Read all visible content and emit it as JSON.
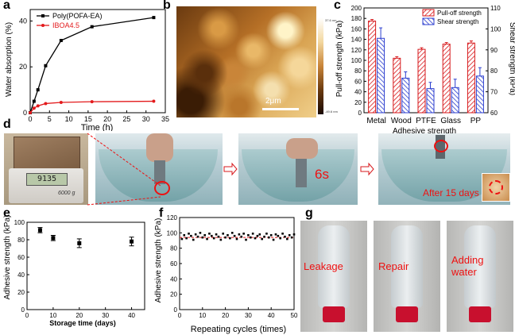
{
  "panels": {
    "a": "a",
    "b": "b",
    "c": "c",
    "d": "d",
    "e": "e",
    "f": "f",
    "g": "g"
  },
  "overlays": {
    "b_scale_bar": "2μm",
    "b_colorbar_top": "37.6 nm",
    "b_colorbar_bottom": "-49.6 nm",
    "d_time_label": "6s",
    "d_after_label": "After 15 days",
    "d_scale_reading": "9135",
    "d_scale_brand": "6000 g",
    "g_labels": [
      "Leakage",
      "Repair",
      "Adding water"
    ]
  },
  "colors": {
    "black_series": "#000000",
    "red_series": "#e31a1c",
    "pull_off": "#d7191c",
    "shear": "#2b3ecf",
    "photo_red": "#ee1111"
  },
  "chart_data": [
    {
      "id": "a",
      "type": "line",
      "xlabel": "Time (h)",
      "ylabel": "Water absorption (%)",
      "xlim": [
        0,
        35
      ],
      "ylim": [
        0,
        45
      ],
      "xticks": [
        0,
        5,
        10,
        15,
        20,
        25,
        30,
        35
      ],
      "yticks": [
        0,
        20,
        40
      ],
      "legend": "top-left",
      "series": [
        {
          "name": "Poly(POFA-EA)",
          "color": "#000000",
          "x": [
            0,
            1,
            2,
            4,
            8,
            16,
            32
          ],
          "y": [
            0,
            5,
            10,
            20.5,
            31.5,
            37.5,
            41.5
          ]
        },
        {
          "name": "IBOA4.5",
          "color": "#e31a1c",
          "x": [
            0,
            1,
            2,
            4,
            8,
            16,
            32
          ],
          "y": [
            0,
            2,
            3,
            4,
            4.5,
            4.8,
            5
          ]
        }
      ]
    },
    {
      "id": "c",
      "type": "bar",
      "xlabel": "Adhesive strength",
      "ylabel": "Pull-off strength (kPa)",
      "ylabel_right": "Shear strength (kPa)",
      "categories": [
        "Metal",
        "Wood",
        "PTFE",
        "Glass",
        "PP"
      ],
      "ylim": [
        0,
        200
      ],
      "yticks": [
        0,
        20,
        40,
        60,
        80,
        100,
        120,
        140,
        160,
        180,
        200
      ],
      "ylim_right": [
        60,
        110
      ],
      "yticks_right": [
        60,
        70,
        80,
        90,
        100,
        110
      ],
      "legend": "top-right",
      "series": [
        {
          "name": "Pull-off strength",
          "axis": "left",
          "values": [
            175,
            104,
            121,
            131,
            133
          ],
          "errors": [
            3,
            3,
            3,
            3,
            4
          ]
        },
        {
          "name": "Shear strength",
          "axis": "right",
          "values": [
            95.5,
            76.5,
            71.5,
            72,
            77.5
          ],
          "errors": [
            5,
            3,
            3,
            4,
            4
          ]
        }
      ]
    },
    {
      "id": "e",
      "type": "scatter",
      "xlabel": "Storage time (days)",
      "ylabel": "Adhesive strength (kPa)",
      "xlim": [
        0,
        45
      ],
      "ylim": [
        0,
        100
      ],
      "xticks": [
        0,
        10,
        20,
        30,
        40
      ],
      "yticks": [
        0,
        20,
        40,
        60,
        80,
        100
      ],
      "x": [
        5,
        10,
        20,
        40
      ],
      "y": [
        91,
        82,
        76,
        78
      ],
      "errors": [
        3,
        3,
        5,
        5
      ]
    },
    {
      "id": "f",
      "type": "scatter",
      "xlabel": "Repeating cycles (times)",
      "ylabel": "Adhesive strength (kPa)",
      "xlim": [
        0,
        50
      ],
      "ylim": [
        0,
        120
      ],
      "xticks": [
        0,
        10,
        20,
        30,
        40,
        50
      ],
      "yticks": [
        0,
        20,
        40,
        60,
        80,
        100,
        120
      ],
      "reference_line": 94,
      "x": [
        1,
        2,
        3,
        4,
        5,
        6,
        7,
        8,
        9,
        10,
        11,
        12,
        13,
        14,
        15,
        16,
        17,
        18,
        19,
        20,
        21,
        22,
        23,
        24,
        25,
        26,
        27,
        28,
        29,
        30,
        31,
        32,
        33,
        34,
        35,
        36,
        37,
        38,
        39,
        40,
        41,
        42,
        43,
        44,
        45,
        46,
        47,
        48,
        49,
        50
      ],
      "y": [
        92,
        97,
        93,
        99,
        96,
        91,
        98,
        95,
        100,
        94,
        97,
        92,
        99,
        96,
        93,
        98,
        95,
        91,
        99,
        94,
        97,
        93,
        100,
        96,
        92,
        98,
        95,
        99,
        91,
        97,
        94,
        99,
        93,
        96,
        98,
        92,
        95,
        99,
        94,
        97,
        91,
        98,
        96,
        93,
        99,
        95,
        92,
        97,
        94,
        98
      ]
    }
  ]
}
